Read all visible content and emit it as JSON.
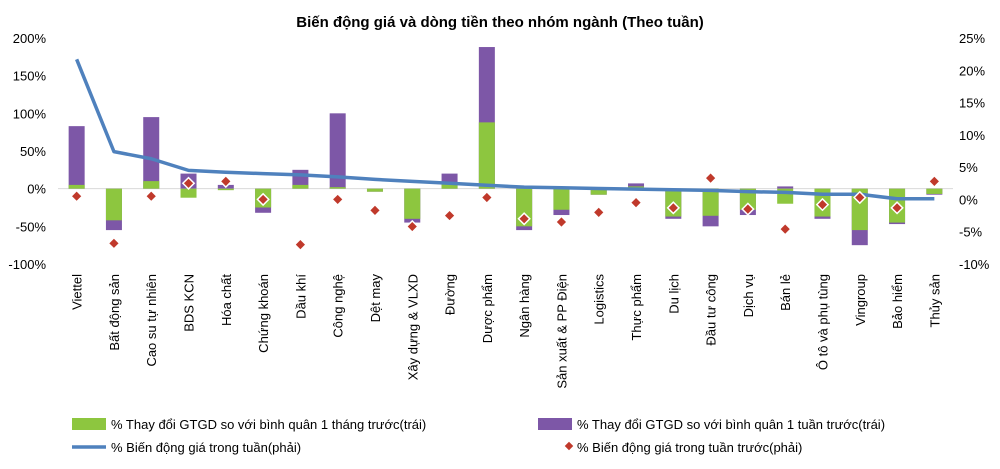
{
  "chart_data": {
    "type": "bar",
    "title": "Biến động giá và dòng tiền theo nhóm ngành (Theo tuần)",
    "categories": [
      "Viettel",
      "Bất động sản",
      "Cao su tự nhiên",
      "BDS KCN",
      "Hóa chất",
      "Chứng khoán",
      "Dầu khí",
      "Công nghệ",
      "Dệt may",
      "Xây dựng & VLXD",
      "Đường",
      "Dược phẩm",
      "Ngân hàng",
      "Sản xuất & PP Điện",
      "Logistics",
      "Thực phẩm",
      "Du lịch",
      "Đầu tư công",
      "Dịch vụ",
      "Bán lẻ",
      "Ô tô và phụ tùng",
      "Vingroup",
      "Bảo hiểm",
      "Thủy sản"
    ],
    "left_axis": {
      "ylim": [
        -100,
        200
      ],
      "ticks": [
        "-100%",
        "-50%",
        "0%",
        "50%",
        "100%",
        "150%",
        "200%"
      ]
    },
    "right_axis": {
      "ylim": [
        -10,
        25
      ],
      "ticks": [
        "-10%",
        "-5%",
        "0%",
        "5%",
        "10%",
        "15%",
        "20%",
        "25%"
      ]
    },
    "series": [
      {
        "name": "% Thay đổi GTGD so với bình quân 1 tháng trước(trái)",
        "kind": "bar",
        "axis": "left",
        "color": "#8dc63f",
        "values": [
          5,
          -42,
          10,
          -12,
          -2,
          -25,
          5,
          2,
          -4,
          -40,
          7,
          88,
          -50,
          -28,
          -8,
          3,
          -37,
          -36,
          -28,
          -20,
          -37,
          -55,
          -45,
          -7
        ]
      },
      {
        "name": "% Thay đổi GTGD so với bình quân 1 tuần trước(trái)",
        "kind": "bar",
        "axis": "left",
        "color": "#7d57a7",
        "values": [
          83,
          -55,
          95,
          20,
          5,
          -32,
          25,
          100,
          -4,
          -45,
          20,
          188,
          -55,
          -35,
          -8,
          7,
          -40,
          -50,
          -35,
          3,
          -40,
          -75,
          -47,
          -8
        ]
      },
      {
        "name": "% Biến động giá trong tuần(phải)",
        "kind": "line",
        "axis": "right",
        "color": "#4f81bd",
        "values": [
          21.7,
          7.4,
          6.3,
          4.5,
          4.2,
          4.0,
          3.8,
          3.5,
          3.1,
          2.8,
          2.5,
          2.2,
          1.9,
          1.8,
          1.7,
          1.6,
          1.5,
          1.4,
          1.2,
          1.1,
          0.8,
          0.8,
          0.1,
          0.1
        ]
      },
      {
        "name": "% Biến động giá trong tuần trước(phải)",
        "kind": "marker",
        "axis": "right",
        "color": "#c0392b",
        "values": [
          0.5,
          -6.8,
          0.5,
          2.5,
          2.8,
          0,
          -7,
          0,
          -1.7,
          -4.2,
          -2.5,
          0.3,
          -3,
          -3.5,
          -2,
          -0.5,
          -1.3,
          3.3,
          -1.5,
          -4.6,
          -0.8,
          0.3,
          -1.3,
          2.8
        ]
      }
    ],
    "legend": "bottom"
  }
}
